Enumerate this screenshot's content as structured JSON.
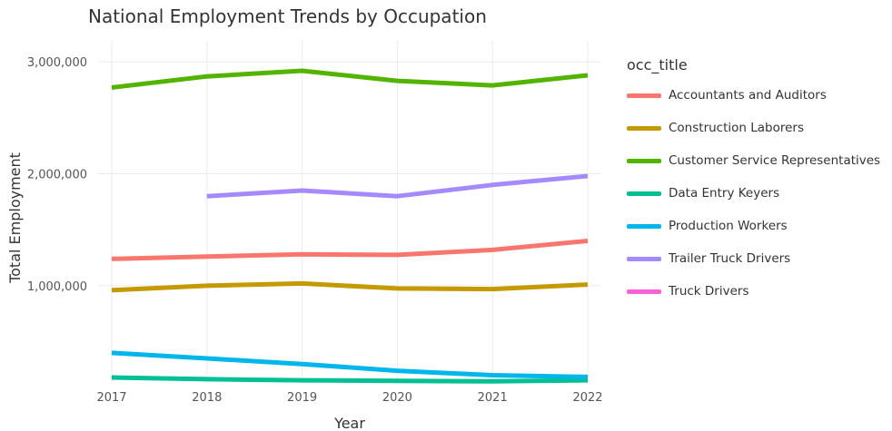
{
  "chart_data": {
    "type": "line",
    "title": "National Employment Trends by Occupation",
    "xlabel": "Year",
    "ylabel": "Total Employment",
    "x": [
      2017,
      2018,
      2019,
      2020,
      2021,
      2022
    ],
    "ylim": [
      180000,
      3050000
    ],
    "yticks": [
      1000000,
      2000000,
      3000000
    ],
    "ytick_labels": [
      "1,000,000",
      "2,000,000",
      "3,000,000"
    ],
    "xtick_labels": [
      "2017",
      "2018",
      "2019",
      "2020",
      "2021",
      "2022"
    ],
    "grid": true,
    "legend_title": "occ_title",
    "legend_position": "right",
    "series": [
      {
        "name": "Accountants and Auditors",
        "color": "#F8766D",
        "values": [
          1240000,
          1260000,
          1280000,
          1275000,
          1320000,
          1400000
        ]
      },
      {
        "name": "Construction Laborers",
        "color": "#C49A00",
        "values": [
          960000,
          1000000,
          1020000,
          975000,
          970000,
          1010000
        ]
      },
      {
        "name": "Customer Service Representatives",
        "color": "#53B400",
        "values": [
          2770000,
          2870000,
          2920000,
          2830000,
          2790000,
          2880000
        ]
      },
      {
        "name": "Data Entry Keyers",
        "color": "#00C094",
        "values": [
          180000,
          165000,
          155000,
          150000,
          145000,
          155000
        ]
      },
      {
        "name": "Production Workers",
        "color": "#00B6EB",
        "values": [
          400000,
          350000,
          300000,
          240000,
          200000,
          185000
        ]
      },
      {
        "name": "Trailer Truck Drivers",
        "color": "#A58AFF",
        "values": [
          null,
          1800000,
          1850000,
          1800000,
          1900000,
          1980000
        ]
      },
      {
        "name": "Truck Drivers",
        "color": "#FB61D7",
        "values": [
          null,
          null,
          null,
          null,
          null,
          null
        ]
      }
    ]
  }
}
